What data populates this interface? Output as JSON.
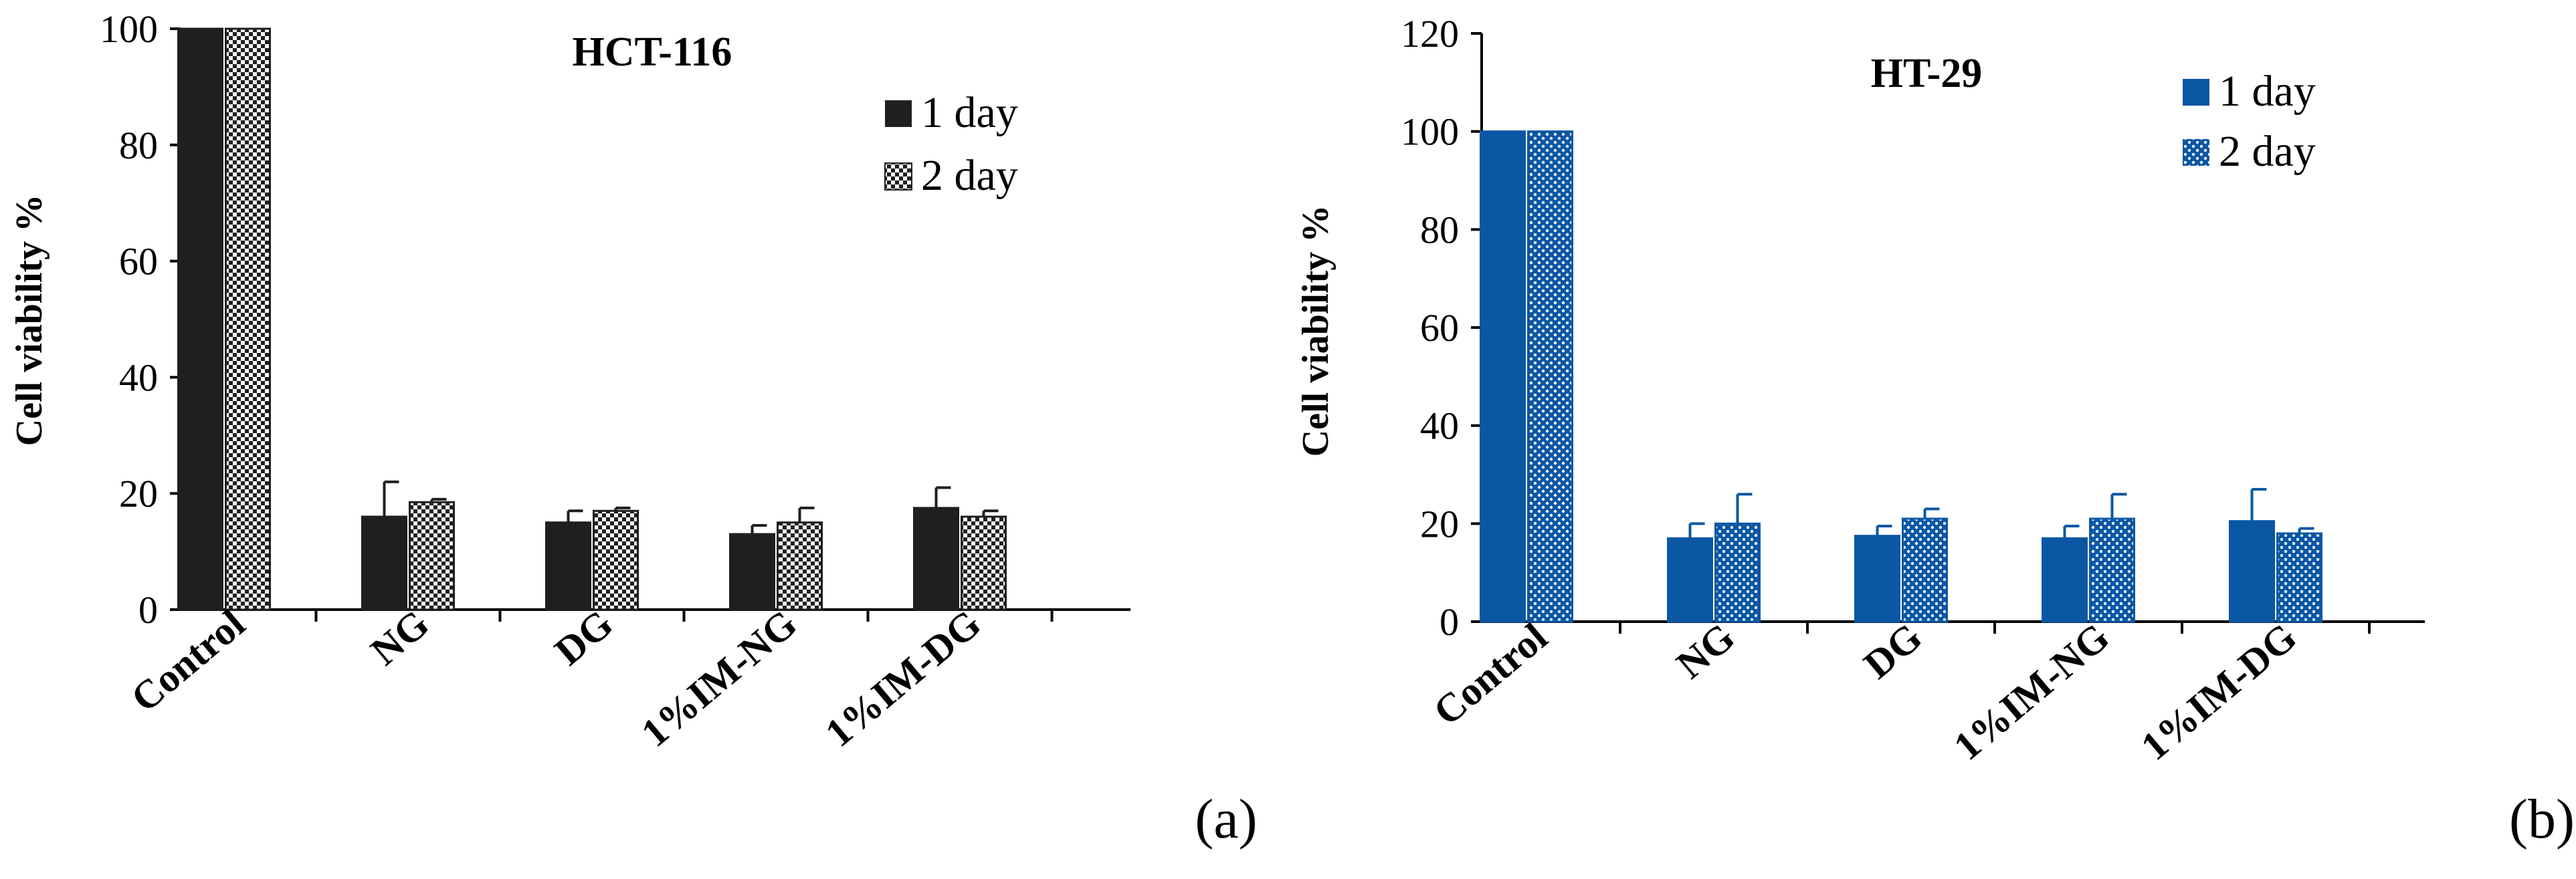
{
  "chart_data": [
    {
      "type": "bar",
      "title": "HCT-116",
      "ylabel": "Cell viability %",
      "xlabel": "",
      "ylim": [
        0,
        100
      ],
      "yticks": [
        0,
        20,
        40,
        60,
        80,
        100
      ],
      "categories": [
        "Control",
        "NG",
        "DG",
        "1%IM-NG",
        "1%IM-DG"
      ],
      "series": [
        {
          "name": "1 day",
          "values": [
            100,
            16,
            15,
            13,
            17.5
          ],
          "errors": [
            0,
            6,
            2,
            1.5,
            3.5
          ],
          "color": "#1f1f1f",
          "pattern": "solid"
        },
        {
          "name": "2 day",
          "values": [
            100,
            18.5,
            17,
            15,
            16
          ],
          "errors": [
            0,
            0.5,
            0.5,
            2.5,
            1
          ],
          "color": "#1f1f1f",
          "pattern": "dotted"
        }
      ],
      "legend": "top-right",
      "grid": false,
      "panel_label": "(a)"
    },
    {
      "type": "bar",
      "title": "HT-29",
      "ylabel": "Cell viability %",
      "xlabel": "",
      "ylim": [
        0,
        120
      ],
      "yticks": [
        0,
        20,
        40,
        60,
        80,
        100,
        120
      ],
      "categories": [
        "Control",
        "NG",
        "DG",
        "1%IM-NG",
        "1%IM-DG"
      ],
      "series": [
        {
          "name": "1 day",
          "values": [
            100,
            17,
            17.5,
            17,
            20.5
          ],
          "errors": [
            0,
            3,
            2,
            2.5,
            6.5
          ],
          "color": "#0b57a4",
          "pattern": "solid"
        },
        {
          "name": "2 day",
          "values": [
            100,
            20,
            21,
            21,
            18
          ],
          "errors": [
            0,
            6,
            2,
            5,
            1
          ],
          "color": "#0b57a4",
          "pattern": "dotted"
        }
      ],
      "legend": "top-right",
      "grid": false,
      "panel_label": "(b)"
    }
  ]
}
